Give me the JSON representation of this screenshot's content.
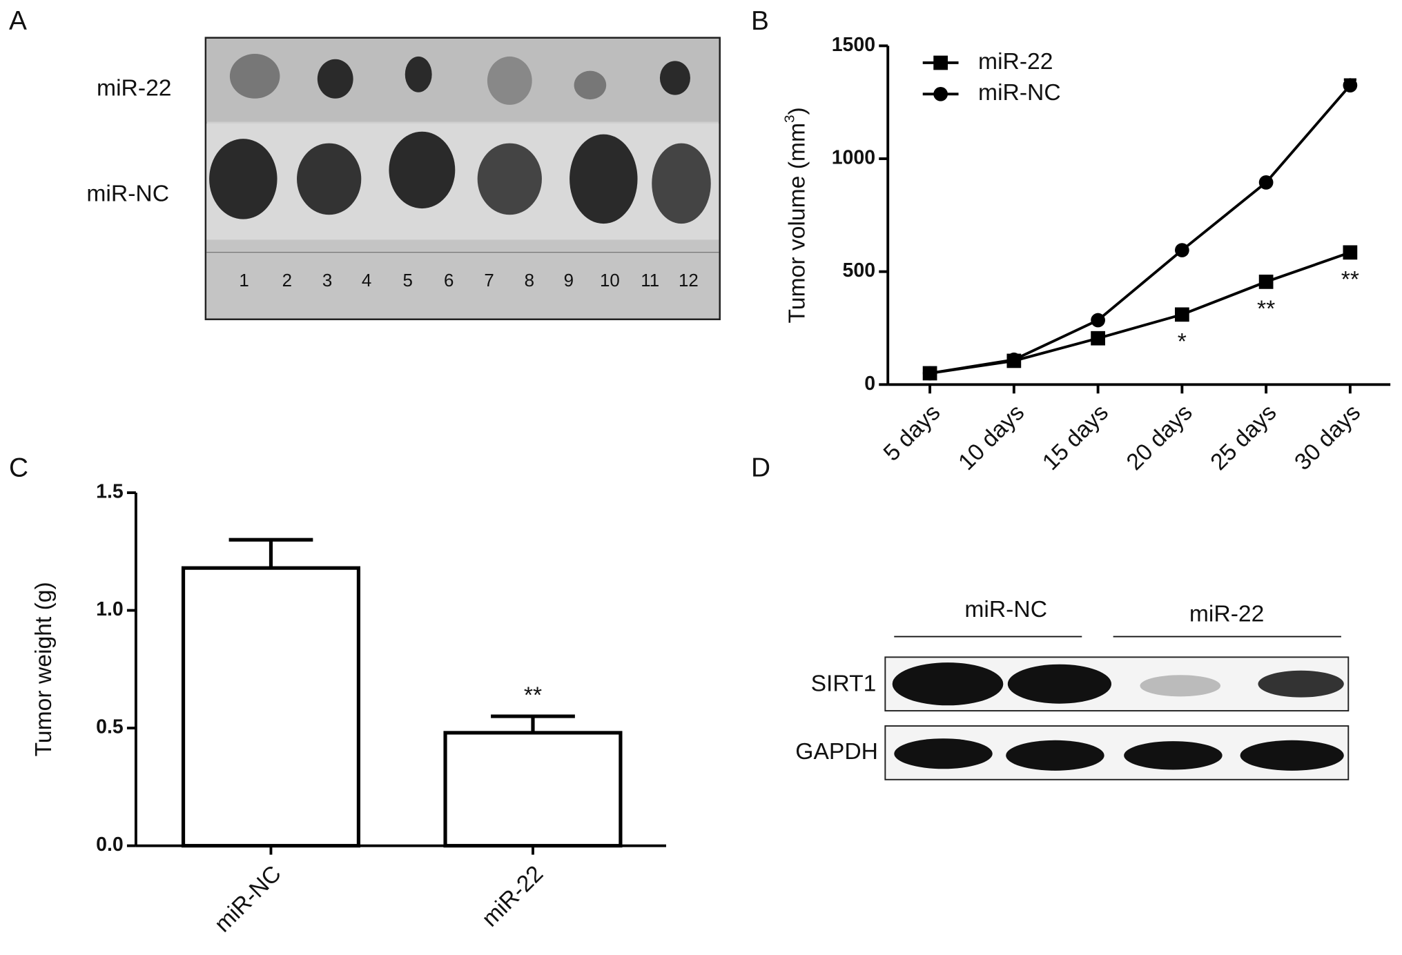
{
  "panel_labels": [
    "A",
    "B",
    "C",
    "D"
  ],
  "photo": {
    "row_labels": [
      "miR-22",
      "miR-NC"
    ],
    "ruler_numbers": [
      "1",
      "2",
      "3",
      "4",
      "5",
      "6",
      "7",
      "8",
      "9",
      "10",
      "11",
      "12"
    ]
  },
  "blot": {
    "groups": [
      "miR-NC",
      "miR-22"
    ],
    "rows": [
      "SIRT1",
      "GAPDH"
    ]
  },
  "chart_data": [
    {
      "type": "line",
      "y_label": "Tumor volume (mm",
      "y_label_sup": "3",
      "y_label_end": ")",
      "categories": [
        "5 days",
        "10 days",
        "15 days",
        "20 days",
        "25 days",
        "30 days"
      ],
      "series": [
        {
          "name": "miR-22",
          "color": "#000000",
          "marker": "square",
          "values": [
            50,
            105,
            205,
            310,
            455,
            585
          ]
        },
        {
          "name": "miR-NC",
          "color": "#000000",
          "marker": "circle",
          "values": [
            50,
            110,
            285,
            595,
            895,
            1325
          ],
          "errors": [
            null,
            null,
            null,
            null,
            null,
            25
          ]
        }
      ],
      "annotations": [
        {
          "text": "*",
          "x": "20 days"
        },
        {
          "text": "**",
          "x": "25 days"
        },
        {
          "text": "**",
          "x": "30 days"
        }
      ],
      "ylim": [
        0,
        1500
      ],
      "yticks": [
        0,
        500,
        1000,
        1500
      ],
      "legend": "top-left"
    },
    {
      "type": "bar",
      "y_label": "Tumor weight (g)",
      "categories": [
        "miR-NC",
        "miR-22"
      ],
      "values": [
        1.18,
        0.48
      ],
      "errors": [
        0.12,
        0.07
      ],
      "color": "#ffffff",
      "annotations": [
        {
          "text": "**",
          "x": "miR-22"
        }
      ],
      "ylim": [
        0,
        1.5
      ],
      "yticks": [
        {
          "value": 0,
          "label": "0.0"
        },
        {
          "value": 0.5,
          "label": "0.5"
        },
        {
          "value": 1,
          "label": "1.0"
        },
        {
          "value": 1.5,
          "label": "1.5"
        }
      ]
    }
  ]
}
